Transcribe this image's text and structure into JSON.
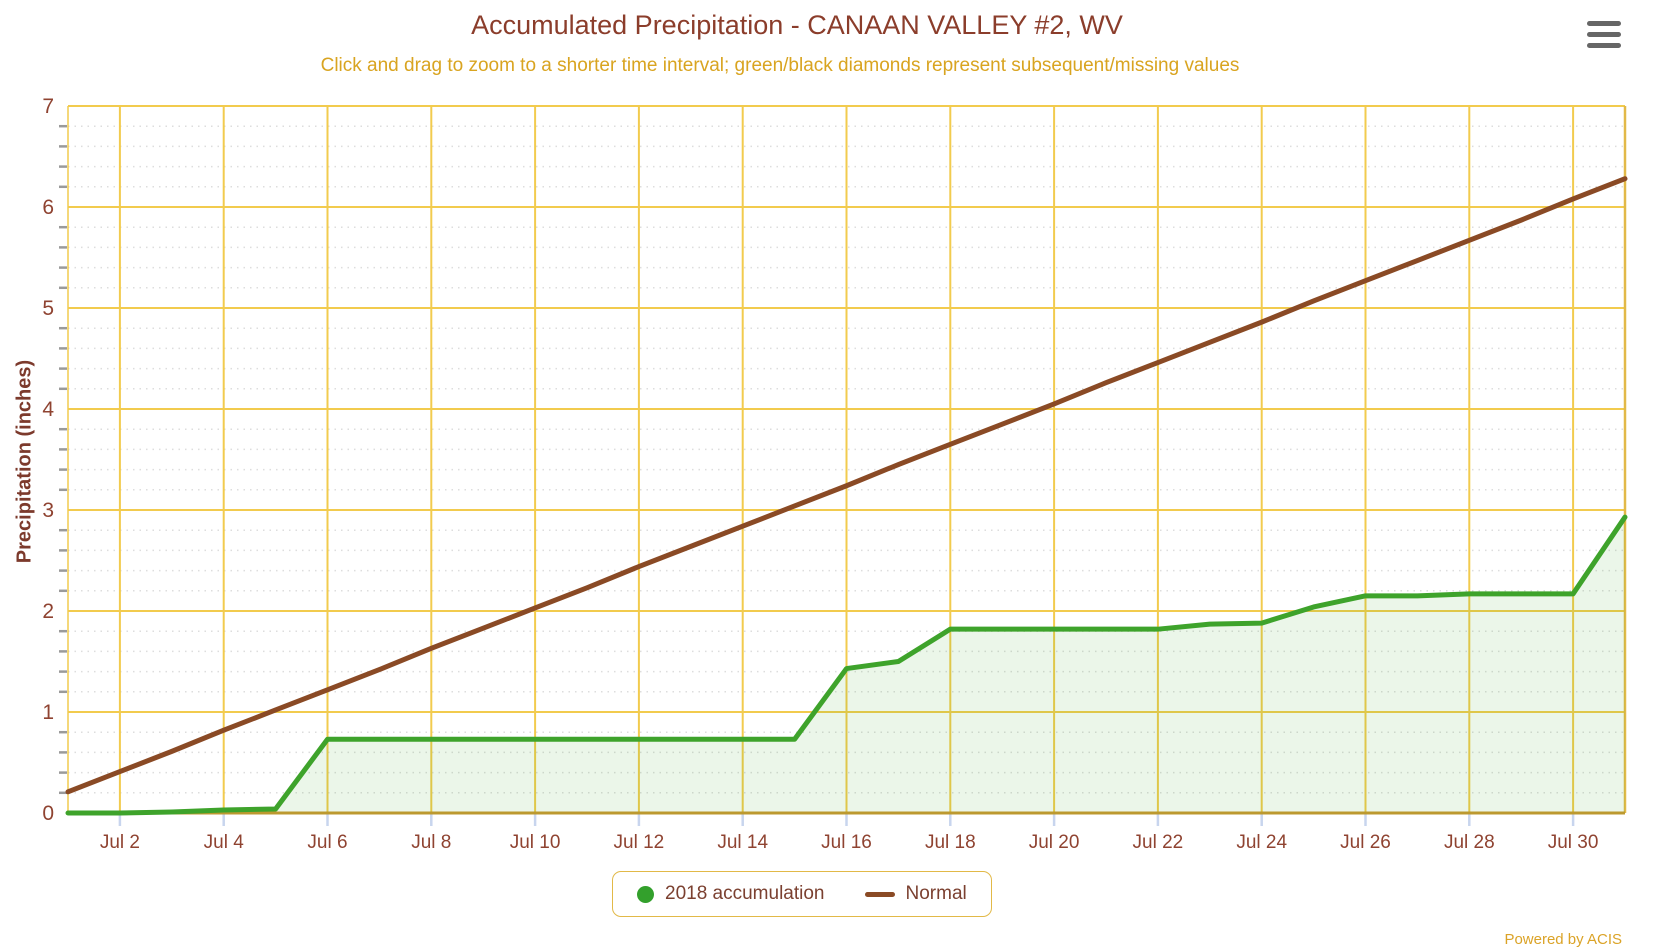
{
  "header": {
    "title": "Accumulated Precipitation - CANAAN VALLEY #2, WV",
    "subtitle": "Click and drag to zoom to a shorter time interval; green/black diamonds represent subsequent/missing values"
  },
  "menu": {
    "icon": "hamburger-menu-icon"
  },
  "credits": {
    "label": "Powered by ACIS"
  },
  "legend": {
    "items": [
      {
        "label": "2018 accumulation",
        "marker": "circle",
        "color": "#33A02C"
      },
      {
        "label": "Normal",
        "marker": "line",
        "color": "#8A4A25"
      }
    ]
  },
  "chart_data": {
    "type": "area",
    "title": "Accumulated Precipitation - CANAAN VALLEY #2, WV",
    "subtitle": "Click and drag to zoom to a shorter time interval; green/black diamonds represent subsequent/missing values",
    "xlabel": "",
    "ylabel": "Precipitation (inches)",
    "ylim": [
      0,
      7
    ],
    "y_tick_interval": 1,
    "y_minor_tick_interval": 0.2,
    "y_tick_labels": [
      "0",
      "1",
      "2",
      "3",
      "4",
      "5",
      "6",
      "7"
    ],
    "x_domain_days": [
      1,
      31
    ],
    "x_tick_days": [
      2,
      4,
      6,
      8,
      10,
      12,
      14,
      16,
      18,
      20,
      22,
      24,
      26,
      28,
      30
    ],
    "x_tick_labels": [
      "Jul 2",
      "Jul 4",
      "Jul 6",
      "Jul 8",
      "Jul 10",
      "Jul 12",
      "Jul 14",
      "Jul 16",
      "Jul 18",
      "Jul 20",
      "Jul 22",
      "Jul 24",
      "Jul 26",
      "Jul 28",
      "Jul 30"
    ],
    "x": [
      "Jul 1",
      "Jul 2",
      "Jul 3",
      "Jul 4",
      "Jul 5",
      "Jul 6",
      "Jul 7",
      "Jul 8",
      "Jul 9",
      "Jul 10",
      "Jul 11",
      "Jul 12",
      "Jul 13",
      "Jul 14",
      "Jul 15",
      "Jul 16",
      "Jul 17",
      "Jul 18",
      "Jul 19",
      "Jul 20",
      "Jul 21",
      "Jul 22",
      "Jul 23",
      "Jul 24",
      "Jul 25",
      "Jul 26",
      "Jul 27",
      "Jul 28",
      "Jul 29",
      "Jul 30",
      "Jul 31"
    ],
    "series": [
      {
        "name": "2018 accumulation",
        "type": "area",
        "color": "#3EA32B",
        "fill_color": "rgba(62,163,43,0.10)",
        "values": [
          0.0,
          0.0,
          0.01,
          0.03,
          0.04,
          0.73,
          0.73,
          0.73,
          0.73,
          0.73,
          0.73,
          0.73,
          0.73,
          0.73,
          0.73,
          1.43,
          1.5,
          1.82,
          1.82,
          1.82,
          1.82,
          1.82,
          1.87,
          1.88,
          2.04,
          2.15,
          2.15,
          2.17,
          2.17,
          2.17,
          2.93
        ]
      },
      {
        "name": "Normal",
        "type": "line",
        "color": "#8A4A25",
        "values": [
          0.21,
          0.41,
          0.61,
          0.82,
          1.02,
          1.22,
          1.42,
          1.63,
          1.83,
          2.03,
          2.23,
          2.44,
          2.64,
          2.84,
          3.04,
          3.24,
          3.45,
          3.65,
          3.85,
          4.05,
          4.26,
          4.46,
          4.66,
          4.86,
          5.07,
          5.27,
          5.47,
          5.67,
          5.87,
          6.08,
          6.28
        ]
      }
    ],
    "grid": {
      "major_color": "#F2CB4E",
      "minor_color": "#DDDDDD",
      "axis_line_color": "#BC992F",
      "x_tick_mark_color": "#C8D5EE",
      "y_minor_tick_color": "#9A9A9A"
    },
    "label_color": "#8F4331",
    "legend_position": "bottom-center"
  }
}
